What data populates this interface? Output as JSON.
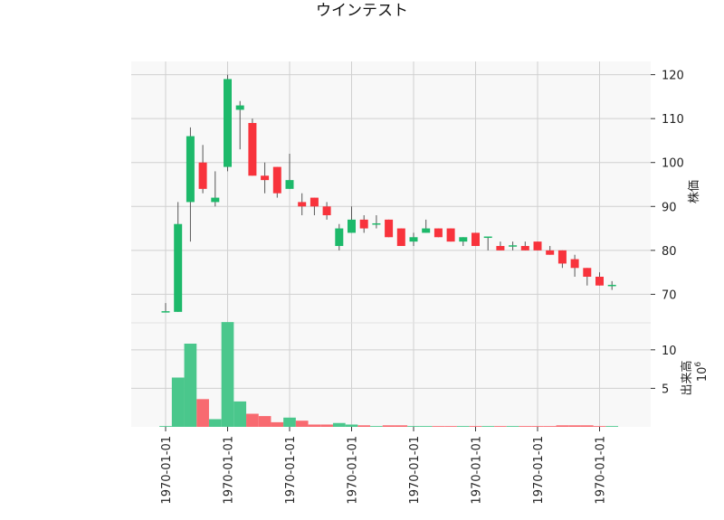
{
  "chart_data": {
    "type": "candlestick",
    "title": "ウインテスト",
    "price_axis": {
      "label": "株価",
      "ticks": [
        70,
        80,
        90,
        100,
        110,
        120
      ],
      "ylim": [
        63.5,
        123
      ]
    },
    "volume_axis": {
      "label": "出来高",
      "scale_label": "10",
      "scale_exponent": "6",
      "ticks": [
        5,
        10
      ],
      "ylim": [
        0,
        13.5
      ]
    },
    "x_tick_labels": [
      "1970-01-01",
      "1970-01-01",
      "1970-01-01",
      "1970-01-01",
      "1970-01-01",
      "1970-01-01",
      "1970-01-01",
      "1970-01-01"
    ],
    "colors": {
      "up": "#1db96a",
      "down": "#f8333c",
      "up_volume": "#4ac78c",
      "down_volume": "#f86a70",
      "wick": "#555555",
      "panel_bg": "#f8f8f8",
      "grid": "#d0d0d0"
    },
    "candles": [
      {
        "open": 66,
        "high": 68,
        "low": 66,
        "close": 66,
        "volume": 0.1
      },
      {
        "open": 66,
        "high": 91,
        "low": 66,
        "close": 86,
        "volume": 6.4
      },
      {
        "open": 91,
        "high": 108,
        "low": 82,
        "close": 106,
        "volume": 10.8
      },
      {
        "open": 100,
        "high": 104,
        "low": 93,
        "close": 94,
        "volume": 3.6
      },
      {
        "open": 91,
        "high": 98,
        "low": 90,
        "close": 92,
        "volume": 1.0
      },
      {
        "open": 99,
        "high": 120,
        "low": 98,
        "close": 119,
        "volume": 13.6
      },
      {
        "open": 112,
        "high": 114,
        "low": 103,
        "close": 113,
        "volume": 3.3
      },
      {
        "open": 109,
        "high": 110,
        "low": 97,
        "close": 97,
        "volume": 1.7
      },
      {
        "open": 97,
        "high": 100,
        "low": 93,
        "close": 96,
        "volume": 1.4
      },
      {
        "open": 99,
        "high": 99,
        "low": 92,
        "close": 93,
        "volume": 0.6
      },
      {
        "open": 94,
        "high": 102,
        "low": 94,
        "close": 96,
        "volume": 1.2
      },
      {
        "open": 91,
        "high": 93,
        "low": 88,
        "close": 90,
        "volume": 0.8
      },
      {
        "open": 92,
        "high": 92,
        "low": 88,
        "close": 90,
        "volume": 0.3
      },
      {
        "open": 90,
        "high": 91,
        "low": 87,
        "close": 88,
        "volume": 0.3
      },
      {
        "open": 81,
        "high": 86,
        "low": 80,
        "close": 85,
        "volume": 0.5
      },
      {
        "open": 84,
        "high": 90,
        "low": 84,
        "close": 87,
        "volume": 0.3
      },
      {
        "open": 87,
        "high": 88,
        "low": 84,
        "close": 85,
        "volume": 0.2
      },
      {
        "open": 86,
        "high": 88,
        "low": 85,
        "close": 86,
        "volume": 0.1
      },
      {
        "open": 87,
        "high": 87,
        "low": 83,
        "close": 83,
        "volume": 0.2
      },
      {
        "open": 85,
        "high": 85,
        "low": 81,
        "close": 81,
        "volume": 0.2
      },
      {
        "open": 82,
        "high": 84,
        "low": 81,
        "close": 83,
        "volume": 0.1
      },
      {
        "open": 84,
        "high": 87,
        "low": 84,
        "close": 85,
        "volume": 0.1
      },
      {
        "open": 85,
        "high": 85,
        "low": 83,
        "close": 83,
        "volume": 0.1
      },
      {
        "open": 85,
        "high": 85,
        "low": 82,
        "close": 82,
        "volume": 0.1
      },
      {
        "open": 82,
        "high": 83,
        "low": 81,
        "close": 83,
        "volume": 0.1
      },
      {
        "open": 84,
        "high": 84,
        "low": 81,
        "close": 81,
        "volume": 0.1
      },
      {
        "open": 83,
        "high": 83,
        "low": 80,
        "close": 83,
        "volume": 0.1
      },
      {
        "open": 81,
        "high": 82,
        "low": 80,
        "close": 80,
        "volume": 0.1
      },
      {
        "open": 81,
        "high": 82,
        "low": 80,
        "close": 81,
        "volume": 0.1
      },
      {
        "open": 81,
        "high": 82,
        "low": 80,
        "close": 80,
        "volume": 0.1
      },
      {
        "open": 82,
        "high": 82,
        "low": 80,
        "close": 80,
        "volume": 0.1
      },
      {
        "open": 80,
        "high": 81,
        "low": 79,
        "close": 79,
        "volume": 0.1
      },
      {
        "open": 80,
        "high": 80,
        "low": 76,
        "close": 77,
        "volume": 0.2
      },
      {
        "open": 78,
        "high": 79,
        "low": 74,
        "close": 76,
        "volume": 0.2
      },
      {
        "open": 76,
        "high": 76,
        "low": 72,
        "close": 74,
        "volume": 0.2
      },
      {
        "open": 74,
        "high": 75,
        "low": 72,
        "close": 72,
        "volume": 0.1
      },
      {
        "open": 72,
        "high": 73,
        "low": 71,
        "close": 72,
        "volume": 0.1
      }
    ]
  }
}
